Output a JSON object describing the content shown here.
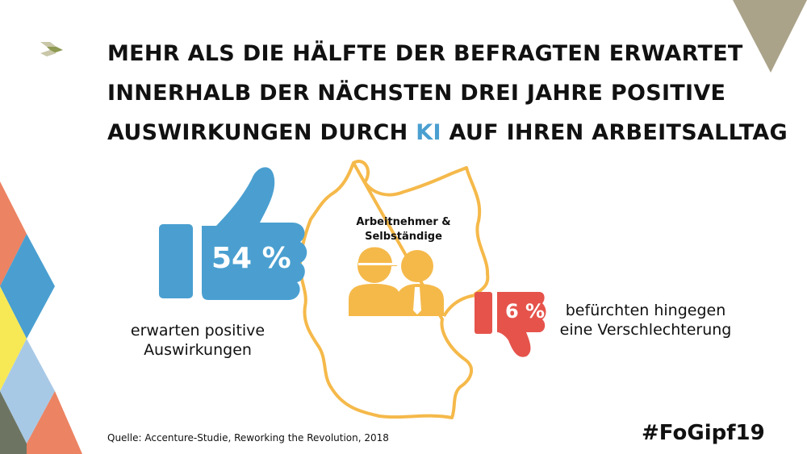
{
  "title": {
    "line1": "MEHR ALS DIE HÄLFTE DER BEFRAGTEN ERWARTET",
    "line2": "INNERHALB DER NÄCHSTEN DREI JAHRE POSITIVE",
    "line3_pre": "AUSWIRKUNGEN DURCH ",
    "line3_highlight": "KI",
    "line3_post": " AUF IHREN ARBEITSALLTAG"
  },
  "positive": {
    "value": "54 %",
    "label_line1": "erwarten positive",
    "label_line2": "Auswirkungen",
    "icon": "thumbs-up-icon",
    "color": "#4a9fd0"
  },
  "negative": {
    "value": "6 %",
    "label_line1": "befürchten hingegen",
    "label_line2": "eine Verschlechterung",
    "icon": "thumbs-down-icon",
    "color": "#e5534b"
  },
  "group": {
    "line1": "Arbeitnehmer &",
    "line2": "Selbständige",
    "icon": "people-icon",
    "color": "#f5b94a"
  },
  "source": "Quelle: Accenture-Studie, Reworking the Revolution, 2018",
  "hashtag": "#FoGipf19",
  "colors": {
    "accent_blue": "#4a9fd0",
    "red": "#e5534b",
    "yellow": "#f5b94a",
    "olive": "#aaa38a"
  }
}
